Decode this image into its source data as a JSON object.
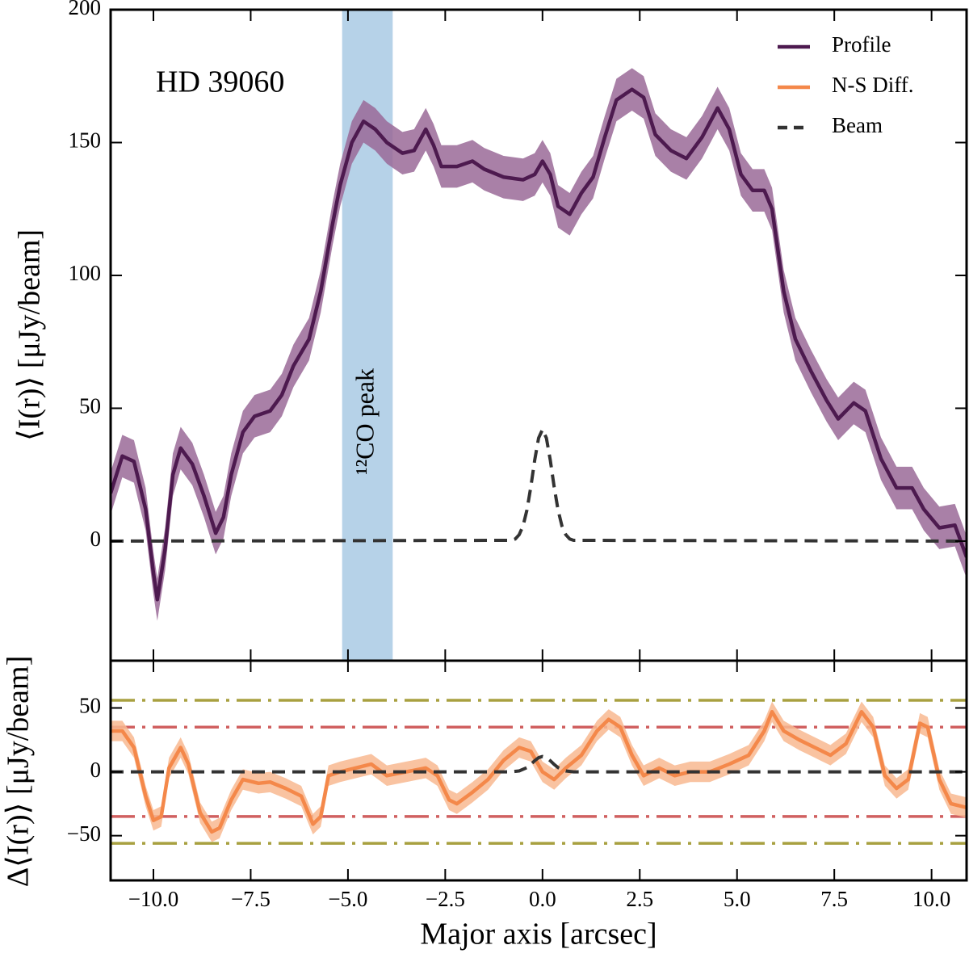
{
  "chart_data": [
    {
      "type": "line",
      "annotation": "HD 39060",
      "ylabel": "⟨I(r)⟩ [μJy/beam]",
      "xlim": [
        -11.1,
        10.9
      ],
      "ylim": [
        -45,
        200
      ],
      "yticks": [
        0,
        50,
        100,
        150,
        200
      ],
      "highlight": {
        "x": [
          -5.15,
          -3.85
        ],
        "label": "¹²CO peak",
        "color": "#b6d2e8"
      },
      "legend": "upper right",
      "series": [
        {
          "name": "Profile",
          "color": "#4d1a4f",
          "band_color": "#9a6a98",
          "uncertainty": 8,
          "x": [
            -11.1,
            -10.8,
            -10.5,
            -10.2,
            -10.0,
            -9.9,
            -9.7,
            -9.5,
            -9.3,
            -9.0,
            -8.7,
            -8.4,
            -8.2,
            -8.0,
            -7.7,
            -7.4,
            -7.0,
            -6.7,
            -6.4,
            -6.0,
            -5.7,
            -5.4,
            -5.2,
            -4.9,
            -4.6,
            -4.3,
            -4.0,
            -3.6,
            -3.3,
            -3.0,
            -2.8,
            -2.6,
            -2.2,
            -1.8,
            -1.5,
            -1.0,
            -0.5,
            -0.2,
            0.0,
            0.2,
            0.4,
            0.7,
            1.0,
            1.3,
            1.6,
            1.9,
            2.3,
            2.6,
            2.9,
            3.3,
            3.7,
            4.1,
            4.5,
            4.8,
            5.1,
            5.4,
            5.7,
            5.9,
            6.2,
            6.5,
            6.9,
            7.3,
            7.6,
            8.0,
            8.3,
            8.7,
            9.1,
            9.5,
            9.8,
            10.2,
            10.6,
            10.9
          ],
          "values": [
            18,
            32,
            30,
            12,
            -12,
            -22,
            -3,
            25,
            35,
            29,
            17,
            3,
            9,
            25,
            41,
            47,
            49,
            55,
            66,
            76,
            94,
            119,
            134,
            150,
            158,
            155,
            150,
            146,
            147,
            155,
            149,
            141,
            141,
            143,
            140,
            137,
            136,
            138,
            143,
            138,
            126,
            123,
            131,
            137,
            152,
            166,
            170,
            167,
            153,
            147,
            144,
            152,
            163,
            155,
            138,
            132,
            132,
            125,
            94,
            76,
            64,
            53,
            46,
            52,
            49,
            31,
            20,
            20,
            12,
            5,
            6,
            -6
          ]
        },
        {
          "name": "Beam",
          "color": "#333333",
          "dashed": true,
          "x": [
            -11.1,
            -0.8,
            -0.7,
            -0.6,
            -0.5,
            -0.4,
            -0.3,
            -0.2,
            -0.1,
            0.0,
            0.1,
            0.2,
            0.3,
            0.4,
            0.5,
            0.6,
            0.7,
            0.8,
            10.9
          ],
          "values": [
            0,
            0.3,
            0.8,
            2.4,
            5.7,
            11.7,
            20.4,
            30.5,
            38.8,
            42,
            38.8,
            30.5,
            20.4,
            11.7,
            5.7,
            2.4,
            0.8,
            0.3,
            0
          ]
        }
      ]
    },
    {
      "type": "line",
      "ylabel": "Δ⟨I(r)⟩ [μJy/beam]",
      "xlabel": "Major axis [arcsec]",
      "xlim": [
        -11.1,
        10.9
      ],
      "ylim": [
        -85,
        87
      ],
      "yticks": [
        {
          "value": -50,
          "label": "−50"
        },
        0,
        50
      ],
      "xticks": [
        {
          "value": -10,
          "label": "−10.0"
        },
        {
          "value": -7.5,
          "label": "−7.5"
        },
        {
          "value": -5,
          "label": "−5.0"
        },
        {
          "value": -2.5,
          "label": "−2.5"
        },
        {
          "value": 0,
          "label": "0.0"
        },
        {
          "value": 2.5,
          "label": "2.5"
        },
        {
          "value": 5,
          "label": "5.0"
        },
        {
          "value": 7.5,
          "label": "7.5"
        },
        {
          "value": 10,
          "label": "10.0"
        }
      ],
      "hlines": [
        {
          "value": 56,
          "color": "#a8a040"
        },
        {
          "value": 35,
          "color": "#d06060"
        },
        {
          "value": -35,
          "color": "#d06060"
        },
        {
          "value": -56,
          "color": "#a8a040"
        }
      ],
      "series": [
        {
          "name": "N-S Diff.",
          "color": "#f4884a",
          "band_color": "#f8b890",
          "uncertainty": 8,
          "x": [
            -11.1,
            -10.8,
            -10.5,
            -10.2,
            -10.0,
            -9.8,
            -9.6,
            -9.3,
            -9.1,
            -8.8,
            -8.5,
            -8.3,
            -8.0,
            -7.7,
            -7.3,
            -7.0,
            -6.6,
            -6.2,
            -5.9,
            -5.7,
            -5.5,
            -5.2,
            -4.8,
            -4.4,
            -4.0,
            -3.5,
            -3.0,
            -2.7,
            -2.4,
            -2.2,
            -1.8,
            -1.4,
            -1.0,
            -0.6,
            -0.3,
            0.0,
            0.3,
            0.6,
            1.0,
            1.4,
            1.7,
            2.0,
            2.3,
            2.6,
            3.0,
            3.4,
            3.8,
            4.3,
            4.8,
            5.3,
            5.7,
            5.9,
            6.2,
            6.6,
            7.0,
            7.4,
            7.8,
            8.2,
            8.5,
            8.8,
            9.1,
            9.4,
            9.7,
            9.9,
            10.2,
            10.5,
            10.9
          ],
          "values": [
            32,
            32,
            19,
            -19,
            -38,
            -35,
            3,
            19,
            6,
            -32,
            -47,
            -44,
            -22,
            -6,
            -9,
            -8,
            -13,
            -19,
            -41,
            -35,
            -3,
            0,
            3,
            6,
            -3,
            0,
            3,
            -3,
            -22,
            -25,
            -16,
            -6,
            9,
            19,
            16,
            0,
            -6,
            3,
            13,
            32,
            41,
            35,
            13,
            -3,
            3,
            -3,
            0,
            0,
            6,
            13,
            32,
            47,
            32,
            25,
            19,
            13,
            22,
            47,
            35,
            -3,
            -13,
            -6,
            38,
            35,
            -6,
            -25,
            -28
          ]
        },
        {
          "color": "#333333",
          "dashed": true,
          "x": [
            -11.1,
            -0.8,
            -0.6,
            -0.4,
            -0.3,
            -0.2,
            -0.1,
            0.0,
            0.1,
            0.2,
            0.3,
            0.4,
            0.6,
            0.8,
            10.9
          ],
          "values": [
            0,
            0,
            0.7,
            3.3,
            5.8,
            8.7,
            11.1,
            12,
            11.1,
            8.7,
            5.8,
            3.3,
            0.7,
            0,
            0
          ]
        }
      ]
    }
  ]
}
